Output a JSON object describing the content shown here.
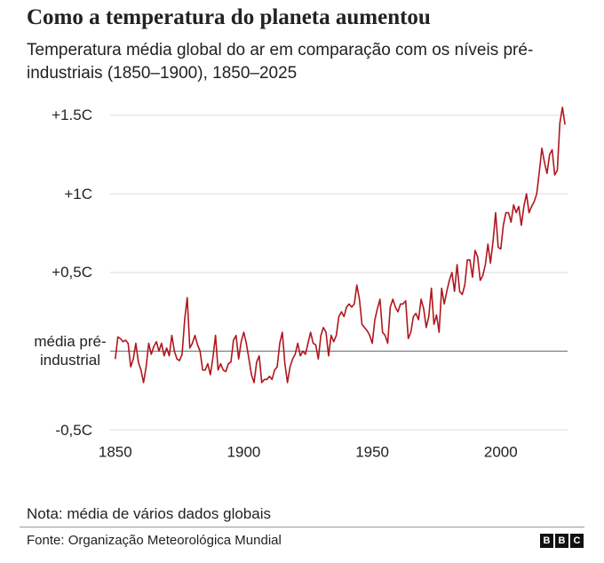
{
  "chart_data": {
    "type": "line",
    "title": "Como a temperatura do planeta aumentou",
    "subtitle": "Temperatura média global do ar em comparação com os níveis pré-industriais (1850–1900), 1850–2025",
    "x": [
      1850,
      1851,
      1852,
      1853,
      1854,
      1855,
      1856,
      1857,
      1858,
      1859,
      1860,
      1861,
      1862,
      1863,
      1864,
      1865,
      1866,
      1867,
      1868,
      1869,
      1870,
      1871,
      1872,
      1873,
      1874,
      1875,
      1876,
      1877,
      1878,
      1879,
      1880,
      1881,
      1882,
      1883,
      1884,
      1885,
      1886,
      1887,
      1888,
      1889,
      1890,
      1891,
      1892,
      1893,
      1894,
      1895,
      1896,
      1897,
      1898,
      1899,
      1900,
      1901,
      1902,
      1903,
      1904,
      1905,
      1906,
      1907,
      1908,
      1909,
      1910,
      1911,
      1912,
      1913,
      1914,
      1915,
      1916,
      1917,
      1918,
      1919,
      1920,
      1921,
      1922,
      1923,
      1924,
      1925,
      1926,
      1927,
      1928,
      1929,
      1930,
      1931,
      1932,
      1933,
      1934,
      1935,
      1936,
      1937,
      1938,
      1939,
      1940,
      1941,
      1942,
      1943,
      1944,
      1945,
      1946,
      1947,
      1948,
      1949,
      1950,
      1951,
      1952,
      1953,
      1954,
      1955,
      1956,
      1957,
      1958,
      1959,
      1960,
      1961,
      1962,
      1963,
      1964,
      1965,
      1966,
      1967,
      1968,
      1969,
      1970,
      1971,
      1972,
      1973,
      1974,
      1975,
      1976,
      1977,
      1978,
      1979,
      1980,
      1981,
      1982,
      1983,
      1984,
      1985,
      1986,
      1987,
      1988,
      1989,
      1990,
      1991,
      1992,
      1993,
      1994,
      1995,
      1996,
      1997,
      1998,
      1999,
      2000,
      2001,
      2002,
      2003,
      2004,
      2005,
      2006,
      2007,
      2008,
      2009,
      2010,
      2011,
      2012,
      2013,
      2014,
      2015,
      2016,
      2017,
      2018,
      2019,
      2020,
      2021,
      2022,
      2023,
      2024,
      2025
    ],
    "values": [
      -0.05,
      0.09,
      0.08,
      0.06,
      0.07,
      0.05,
      -0.1,
      -0.05,
      0.05,
      -0.07,
      -0.12,
      -0.2,
      -0.1,
      0.05,
      -0.02,
      0.03,
      0.06,
      0.0,
      0.05,
      -0.03,
      0.02,
      -0.03,
      0.1,
      0.0,
      -0.05,
      -0.06,
      -0.02,
      0.2,
      0.34,
      0.02,
      0.05,
      0.1,
      0.04,
      0.0,
      -0.12,
      -0.12,
      -0.08,
      -0.15,
      -0.04,
      0.1,
      -0.12,
      -0.08,
      -0.12,
      -0.13,
      -0.08,
      -0.07,
      0.07,
      0.1,
      -0.05,
      0.06,
      0.12,
      0.05,
      -0.05,
      -0.15,
      -0.2,
      -0.07,
      -0.03,
      -0.2,
      -0.18,
      -0.18,
      -0.16,
      -0.18,
      -0.12,
      -0.1,
      0.05,
      0.12,
      -0.08,
      -0.2,
      -0.1,
      -0.05,
      -0.02,
      0.05,
      -0.03,
      0.0,
      -0.02,
      0.05,
      0.12,
      0.05,
      0.04,
      -0.05,
      0.1,
      0.15,
      0.12,
      -0.03,
      0.1,
      0.06,
      0.1,
      0.22,
      0.25,
      0.22,
      0.28,
      0.3,
      0.28,
      0.3,
      0.42,
      0.33,
      0.17,
      0.15,
      0.13,
      0.1,
      0.05,
      0.2,
      0.27,
      0.33,
      0.12,
      0.1,
      0.05,
      0.28,
      0.33,
      0.28,
      0.25,
      0.3,
      0.3,
      0.32,
      0.08,
      0.12,
      0.22,
      0.24,
      0.2,
      0.33,
      0.27,
      0.15,
      0.22,
      0.4,
      0.17,
      0.23,
      0.12,
      0.4,
      0.3,
      0.38,
      0.45,
      0.5,
      0.38,
      0.55,
      0.38,
      0.36,
      0.42,
      0.58,
      0.58,
      0.47,
      0.64,
      0.6,
      0.45,
      0.48,
      0.55,
      0.68,
      0.56,
      0.7,
      0.88,
      0.66,
      0.65,
      0.8,
      0.88,
      0.88,
      0.82,
      0.93,
      0.88,
      0.92,
      0.8,
      0.92,
      1.0,
      0.88,
      0.92,
      0.95,
      1.0,
      1.14,
      1.29,
      1.2,
      1.13,
      1.25,
      1.28,
      1.12,
      1.15,
      1.45,
      1.55,
      1.44
    ],
    "color": "#b0161d",
    "xlim": [
      1848,
      2026
    ],
    "xticks": [
      1850,
      1900,
      1950,
      2000
    ],
    "ylim": [
      -0.5,
      1.6
    ],
    "yticks": [
      {
        "value": -0.5,
        "label": "-0,5C"
      },
      {
        "value": 0,
        "label": "média pré-industrial"
      },
      {
        "value": 0.5,
        "label": "+0,5C"
      },
      {
        "value": 1,
        "label": "+1C"
      },
      {
        "value": 1.5,
        "label": "+1.5C"
      }
    ],
    "grid": true,
    "note": "Nota: média de vários dados globais",
    "source": "Fonte: Organização Meteorológica Mundial",
    "logo": [
      "B",
      "B",
      "C"
    ]
  }
}
